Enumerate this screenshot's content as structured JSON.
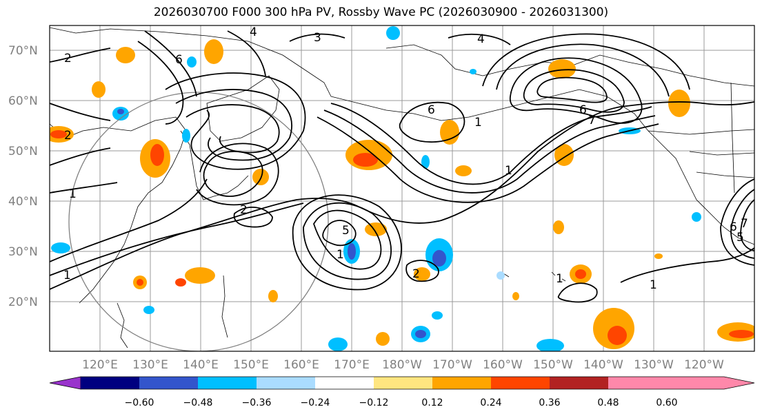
{
  "title": "2026030700 F000 300 hPa PV, Rossby Wave PC (2026030900 - 2026031300)",
  "lat_labels": [
    "70°N",
    "60°N",
    "50°N",
    "40°N",
    "30°N",
    "20°N"
  ],
  "lon_labels": [
    "120°E",
    "130°E",
    "140°E",
    "150°E",
    "160°E",
    "170°E",
    "180°W",
    "170°W",
    "160°W",
    "150°W",
    "140°W",
    "130°W",
    "120°W"
  ],
  "colorbar": {
    "colors": [
      "#9933cc",
      "#000080",
      "#3355cc",
      "#00bfff",
      "#aadcff",
      "#ffffff",
      "#ffe680",
      "#ffa500",
      "#ff4500",
      "#b22222",
      "#ff88aa"
    ],
    "ticks": [
      "−0.60",
      "−0.48",
      "−0.36",
      "−0.24",
      "−0.12",
      "0.12",
      "0.24",
      "0.36",
      "0.48",
      "0.60"
    ]
  },
  "contour_labels": [
    "2",
    "6",
    "4",
    "3",
    "2",
    "1",
    "5",
    "1",
    "2",
    "6",
    "4",
    "1",
    "1",
    "6",
    "7",
    "1",
    "2",
    "6",
    "7",
    "5",
    "1",
    "1"
  ]
}
